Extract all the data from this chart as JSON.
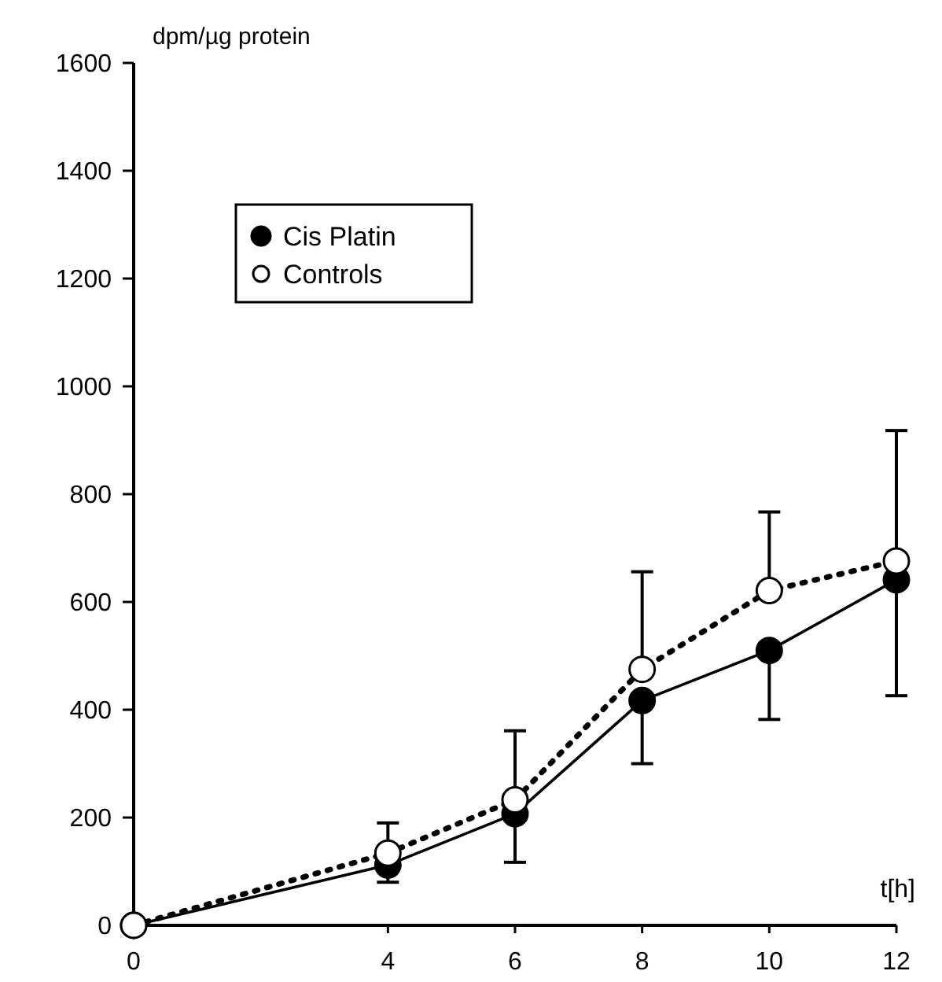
{
  "chart_data": {
    "type": "line",
    "xlabel": "t[h]",
    "ylabel": "dpm/µg protein",
    "xlim": [
      0,
      12
    ],
    "xticks": [
      0,
      4,
      6,
      8,
      10,
      12
    ],
    "ylim": [
      0,
      1600
    ],
    "yticks": [
      0,
      200,
      400,
      600,
      800,
      1000,
      1200,
      1400,
      1600
    ],
    "x": [
      0,
      4,
      6,
      8,
      10,
      12
    ],
    "legend": "top left",
    "marker": "circle",
    "grid": false,
    "series": [
      {
        "name": "Cis Platin",
        "color": "#000000",
        "line_style": "solid",
        "values": [
          0,
          112,
          207,
          417,
          510,
          641
        ],
        "errors": [
          null,
          [
            80,
            112
          ],
          [
            117,
            207
          ],
          [
            300,
            417
          ],
          [
            382,
            510
          ],
          [
            426,
            641
          ]
        ]
      },
      {
        "name": "Controls",
        "color": "#000000",
        "line_style": "dotted",
        "values": [
          0,
          134,
          233,
          475,
          621,
          676
        ],
        "errors": [
          null,
          [
            134,
            190
          ],
          [
            233,
            361
          ],
          [
            475,
            656
          ],
          [
            621,
            767
          ],
          [
            676,
            918
          ]
        ]
      }
    ]
  }
}
